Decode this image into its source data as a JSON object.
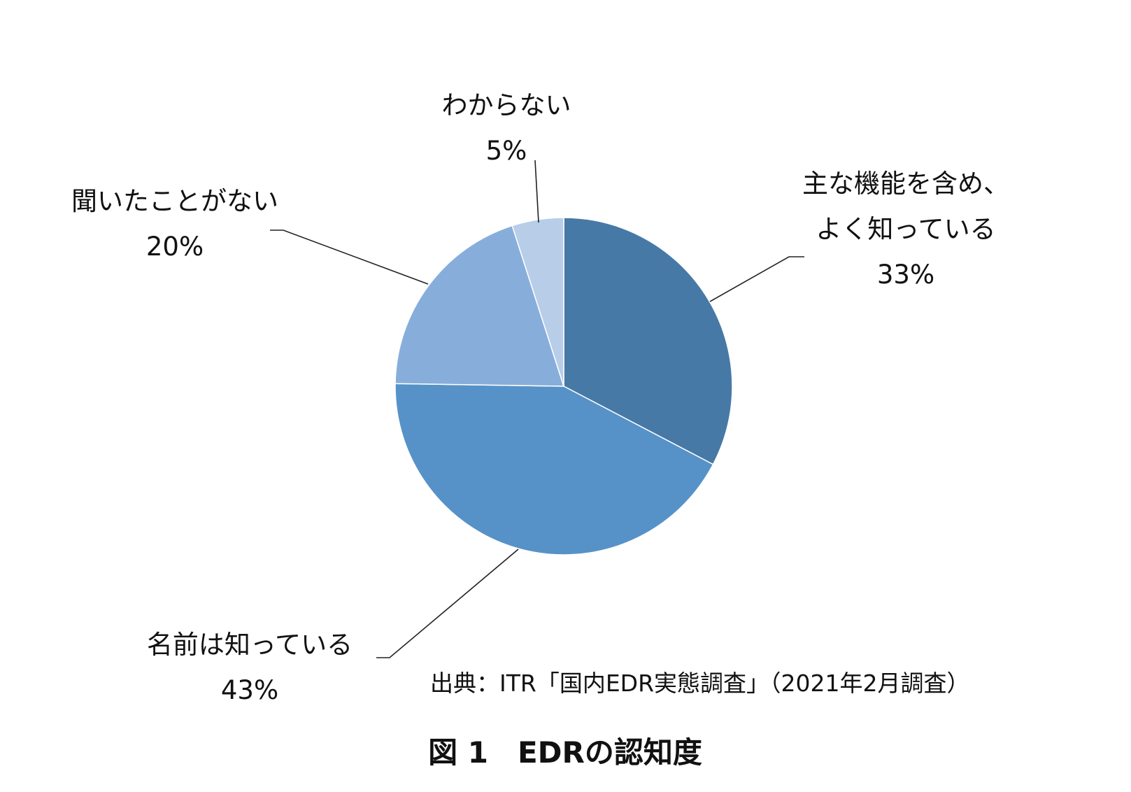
{
  "chart_data": {
    "type": "pie",
    "title": "",
    "start_angle": "12 o'clock",
    "direction": "clockwise",
    "slices": [
      {
        "label_lines": [
          "主な機能を含め、",
          "よく知っている"
        ],
        "value": 33,
        "value_label": "33%",
        "color": "#4779A6"
      },
      {
        "label_lines": [
          "名前は知っている"
        ],
        "value": 43,
        "value_label": "43%",
        "color": "#5692C8"
      },
      {
        "label_lines": [
          "聞いたことがない"
        ],
        "value": 20,
        "value_label": "20%",
        "color": "#87AEDB"
      },
      {
        "label_lines": [
          "わからない"
        ],
        "value": 5,
        "value_label": "5%",
        "color": "#B8CDE8"
      }
    ]
  },
  "source": "出典：ITR「国内EDR実態調査」（2021年2月調査）",
  "caption": "図 1　EDRの認知度"
}
